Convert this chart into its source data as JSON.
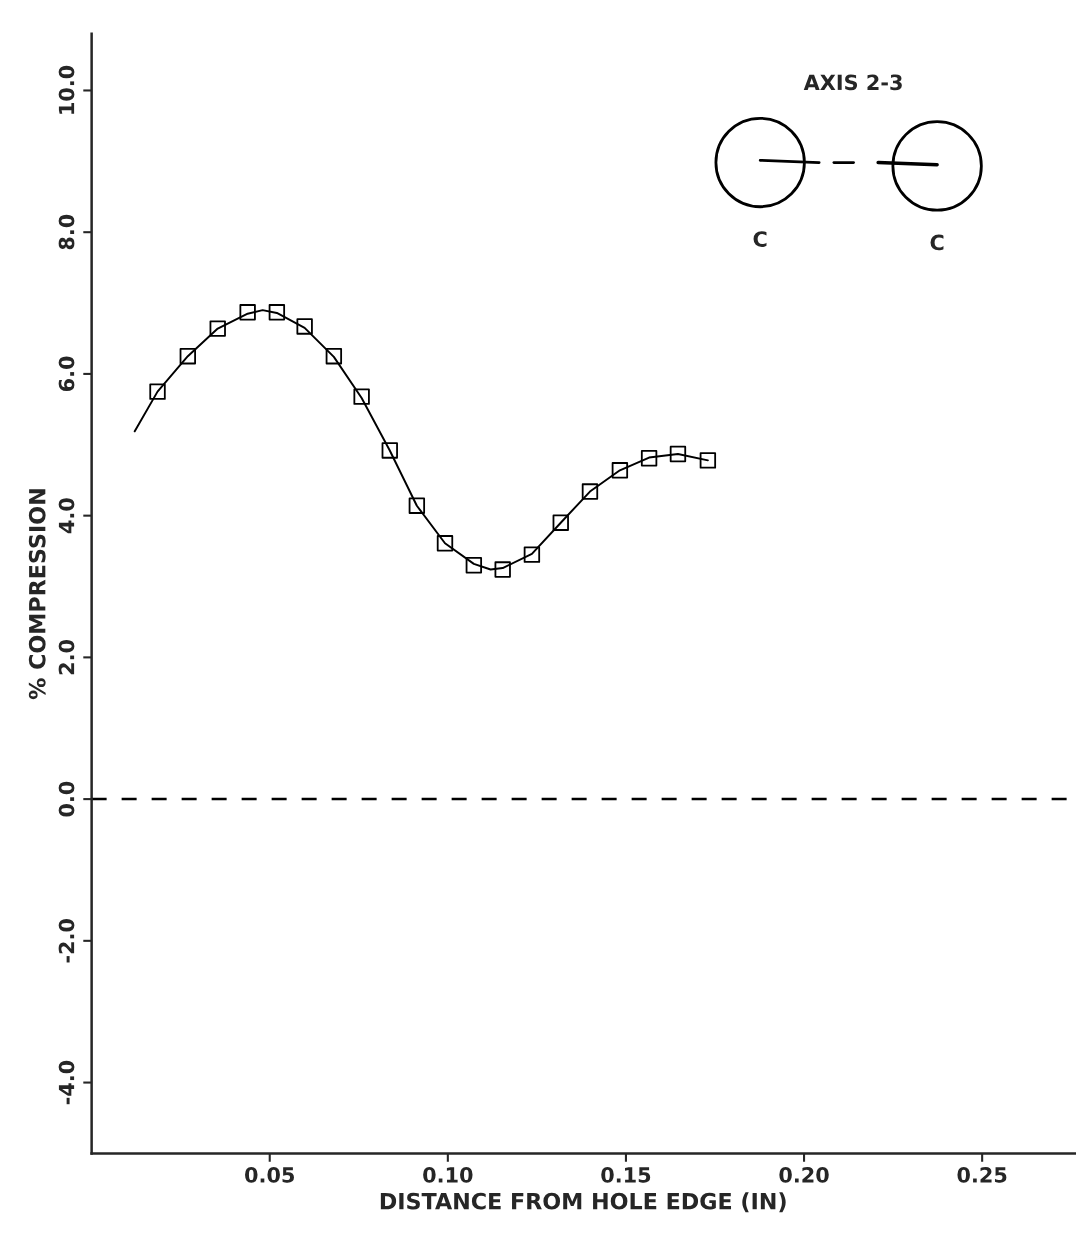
{
  "chart_data": {
    "type": "scatter",
    "xlabel": "DISTANCE FROM HOLE EDGE (IN)",
    "ylabel": "% COMPRESSION",
    "xlim": [
      0,
      0.276
    ],
    "ylim": [
      -5.0,
      10.8
    ],
    "xticks": [
      {
        "value": 0.05,
        "label": "0.05"
      },
      {
        "value": 0.1,
        "label": "0.10"
      },
      {
        "value": 0.15,
        "label": "0.15"
      },
      {
        "value": 0.2,
        "label": "0.20"
      },
      {
        "value": 0.25,
        "label": "0.25"
      }
    ],
    "yticks": [
      {
        "value": -4,
        "label": "-4.0"
      },
      {
        "value": -2,
        "label": "-2.0"
      },
      {
        "value": 0,
        "label": "0.0"
      },
      {
        "value": 2,
        "label": "2.0"
      },
      {
        "value": 4,
        "label": "4.0"
      },
      {
        "value": 6,
        "label": "6.0"
      },
      {
        "value": 8,
        "label": "8.0"
      },
      {
        "value": 10,
        "label": "10.0"
      }
    ],
    "grid": false,
    "series": [
      {
        "type": "scatter",
        "color": "#000000",
        "marker": "square",
        "x": [
          0.0185,
          0.027,
          0.0354,
          0.0438,
          0.052,
          0.0598,
          0.068,
          0.0758,
          0.0837,
          0.0913,
          0.0992,
          0.1073,
          0.1154,
          0.1236,
          0.1317,
          0.1399,
          0.1483,
          0.1565,
          0.1646,
          0.173
        ],
        "values": [
          5.75,
          6.25,
          6.64,
          6.87,
          6.87,
          6.67,
          6.25,
          5.68,
          4.92,
          4.14,
          3.61,
          3.3,
          3.24,
          3.45,
          3.9,
          4.34,
          4.64,
          4.81,
          4.87,
          4.78
        ]
      },
      {
        "type": "line",
        "color": "#000000",
        "marker": "none",
        "line_style": "solid",
        "x": [
          0.0121,
          0.0185,
          0.027,
          0.0354,
          0.0438,
          0.048,
          0.052,
          0.0598,
          0.068,
          0.0758,
          0.0837,
          0.0913,
          0.0992,
          0.1073,
          0.112,
          0.1154,
          0.1236,
          0.1317,
          0.1399,
          0.1483,
          0.1565,
          0.1646,
          0.173
        ],
        "values": [
          5.19,
          5.75,
          6.25,
          6.64,
          6.85,
          6.9,
          6.86,
          6.65,
          6.24,
          5.66,
          4.92,
          4.14,
          3.61,
          3.32,
          3.24,
          3.26,
          3.46,
          3.9,
          4.34,
          4.64,
          4.82,
          4.87,
          4.78
        ]
      }
    ],
    "ref_lines": [
      {
        "axis": "y",
        "value": 0,
        "color": "#000000",
        "line_style": "dashed"
      }
    ],
    "annotations": [
      "AXIS 2-3",
      "C",
      "C"
    ]
  }
}
